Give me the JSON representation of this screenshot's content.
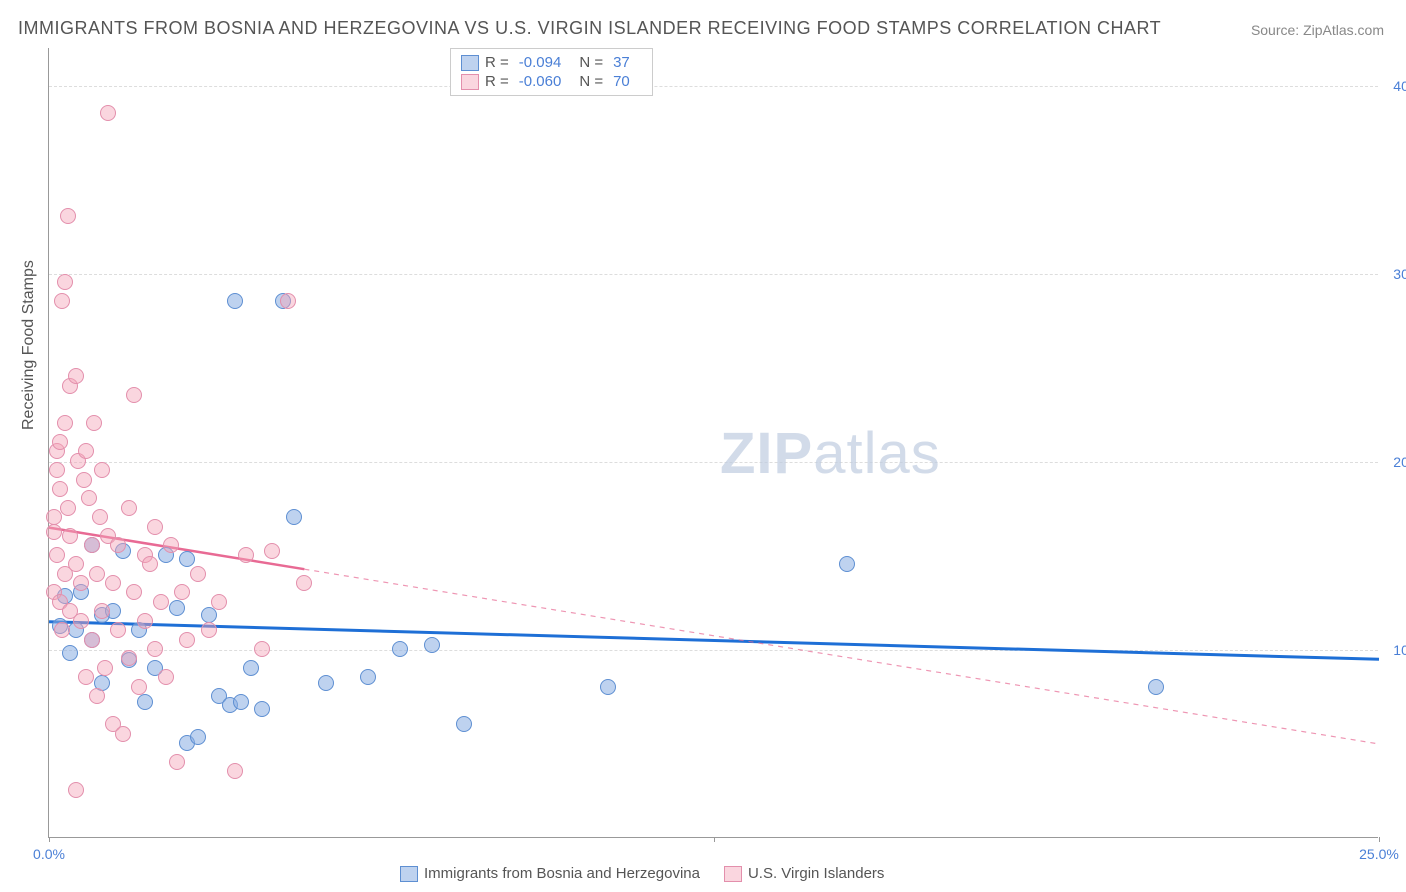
{
  "title": "IMMIGRANTS FROM BOSNIA AND HERZEGOVINA VS U.S. VIRGIN ISLANDER RECEIVING FOOD STAMPS CORRELATION CHART",
  "source": "Source: ZipAtlas.com",
  "watermark_a": "ZIP",
  "watermark_b": "atlas",
  "chart": {
    "type": "scatter",
    "background_color": "#ffffff",
    "grid_color": "#dddddd",
    "axis_color": "#999999",
    "xlim": [
      0,
      25
    ],
    "ylim": [
      0,
      42
    ],
    "xticks": [
      0,
      12.5,
      25
    ],
    "xtick_labels": [
      "0.0%",
      "",
      "25.0%"
    ],
    "yticks": [
      10,
      20,
      30,
      40
    ],
    "ytick_labels": [
      "10.0%",
      "20.0%",
      "30.0%",
      "40.0%"
    ],
    "ylabel": "Receiving Food Stamps",
    "label_fontsize": 16,
    "tick_fontsize": 14,
    "tick_color": "#4a7fd6",
    "marker_size": 16,
    "series": [
      {
        "name": "Immigrants from Bosnia and Herzegovina",
        "color_fill": "rgba(137,173,226,0.55)",
        "color_border": "#5e8fd2",
        "trend_color": "#1e6fd6",
        "trend_width": 3,
        "trend_dash_after_x": null,
        "R": "-0.094",
        "N": "37",
        "trend": {
          "x1": 0,
          "y1": 11.5,
          "x2": 25,
          "y2": 9.5
        },
        "points": [
          [
            0.2,
            11.2
          ],
          [
            0.3,
            12.8
          ],
          [
            0.4,
            9.8
          ],
          [
            0.5,
            11.0
          ],
          [
            0.6,
            13.0
          ],
          [
            0.8,
            10.5
          ],
          [
            0.8,
            15.5
          ],
          [
            1.0,
            11.8
          ],
          [
            1.0,
            8.2
          ],
          [
            1.2,
            12.0
          ],
          [
            1.4,
            15.2
          ],
          [
            1.5,
            9.4
          ],
          [
            1.7,
            11.0
          ],
          [
            1.8,
            7.2
          ],
          [
            2.0,
            9.0
          ],
          [
            2.2,
            15.0
          ],
          [
            2.4,
            12.2
          ],
          [
            2.6,
            5.0
          ],
          [
            2.6,
            14.8
          ],
          [
            2.8,
            5.3
          ],
          [
            3.0,
            11.8
          ],
          [
            3.2,
            7.5
          ],
          [
            3.4,
            7.0
          ],
          [
            3.5,
            28.5
          ],
          [
            3.6,
            7.2
          ],
          [
            3.8,
            9.0
          ],
          [
            4.0,
            6.8
          ],
          [
            4.4,
            28.5
          ],
          [
            4.6,
            17.0
          ],
          [
            5.2,
            8.2
          ],
          [
            6.0,
            8.5
          ],
          [
            6.6,
            10.0
          ],
          [
            7.2,
            10.2
          ],
          [
            7.8,
            6.0
          ],
          [
            10.5,
            8.0
          ],
          [
            15.0,
            14.5
          ],
          [
            20.8,
            8.0
          ]
        ]
      },
      {
        "name": "U.S. Virgin Islanders",
        "color_fill": "rgba(244,164,185,0.45)",
        "color_border": "#e38fac",
        "trend_color": "#e86a94",
        "trend_width": 2.5,
        "trend_dash_after_x": 4.8,
        "R": "-0.060",
        "N": "70",
        "trend": {
          "x1": 0,
          "y1": 16.5,
          "x2": 25,
          "y2": 5.0
        },
        "points": [
          [
            0.1,
            13.0
          ],
          [
            0.1,
            16.2
          ],
          [
            0.1,
            17.0
          ],
          [
            0.15,
            19.5
          ],
          [
            0.15,
            20.5
          ],
          [
            0.15,
            15.0
          ],
          [
            0.2,
            12.5
          ],
          [
            0.2,
            21.0
          ],
          [
            0.2,
            18.5
          ],
          [
            0.25,
            28.5
          ],
          [
            0.25,
            11.0
          ],
          [
            0.3,
            29.5
          ],
          [
            0.3,
            22.0
          ],
          [
            0.3,
            14.0
          ],
          [
            0.35,
            33.0
          ],
          [
            0.35,
            17.5
          ],
          [
            0.4,
            12.0
          ],
          [
            0.4,
            24.0
          ],
          [
            0.4,
            16.0
          ],
          [
            0.5,
            24.5
          ],
          [
            0.5,
            14.5
          ],
          [
            0.5,
            2.5
          ],
          [
            0.55,
            20.0
          ],
          [
            0.6,
            11.5
          ],
          [
            0.6,
            13.5
          ],
          [
            0.65,
            19.0
          ],
          [
            0.7,
            20.5
          ],
          [
            0.7,
            8.5
          ],
          [
            0.75,
            18.0
          ],
          [
            0.8,
            15.5
          ],
          [
            0.8,
            10.5
          ],
          [
            0.85,
            22.0
          ],
          [
            0.9,
            7.5
          ],
          [
            0.9,
            14.0
          ],
          [
            0.95,
            17.0
          ],
          [
            1.0,
            12.0
          ],
          [
            1.0,
            19.5
          ],
          [
            1.05,
            9.0
          ],
          [
            1.1,
            16.0
          ],
          [
            1.1,
            38.5
          ],
          [
            1.2,
            13.5
          ],
          [
            1.2,
            6.0
          ],
          [
            1.3,
            11.0
          ],
          [
            1.3,
            15.5
          ],
          [
            1.4,
            5.5
          ],
          [
            1.5,
            9.5
          ],
          [
            1.5,
            17.5
          ],
          [
            1.6,
            13.0
          ],
          [
            1.6,
            23.5
          ],
          [
            1.7,
            8.0
          ],
          [
            1.8,
            15.0
          ],
          [
            1.8,
            11.5
          ],
          [
            1.9,
            14.5
          ],
          [
            2.0,
            10.0
          ],
          [
            2.0,
            16.5
          ],
          [
            2.1,
            12.5
          ],
          [
            2.2,
            8.5
          ],
          [
            2.3,
            15.5
          ],
          [
            2.4,
            4.0
          ],
          [
            2.5,
            13.0
          ],
          [
            2.6,
            10.5
          ],
          [
            2.8,
            14.0
          ],
          [
            3.0,
            11.0
          ],
          [
            3.2,
            12.5
          ],
          [
            3.5,
            3.5
          ],
          [
            3.7,
            15.0
          ],
          [
            4.0,
            10.0
          ],
          [
            4.2,
            15.2
          ],
          [
            4.5,
            28.5
          ],
          [
            4.8,
            13.5
          ]
        ]
      }
    ],
    "legend_bottom": [
      {
        "label": "Immigrants from Bosnia and Herzegovina",
        "swatch": "blue"
      },
      {
        "label": "U.S. Virgin Islanders",
        "swatch": "pink"
      }
    ]
  }
}
